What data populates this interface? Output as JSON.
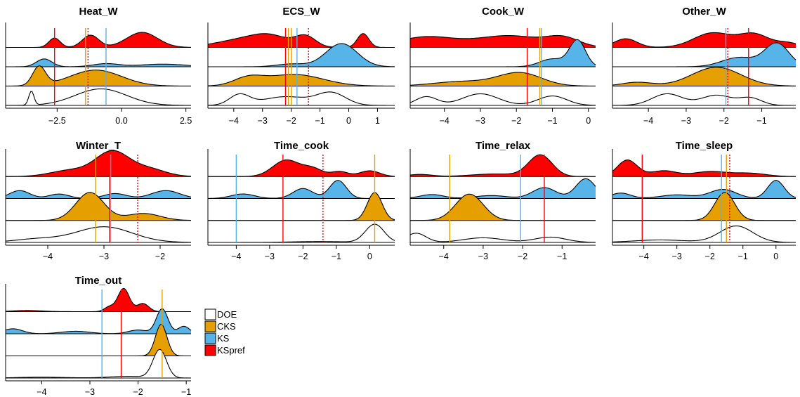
{
  "legend": {
    "items": [
      {
        "label": "DOE",
        "color": "#ffffff"
      },
      {
        "label": "CKS",
        "color": "#e69f00"
      },
      {
        "label": "KS",
        "color": "#56b4e9"
      },
      {
        "label": "KSpref",
        "color": "#ff0000"
      }
    ]
  },
  "chart_data": [
    {
      "type": "area",
      "title": "Heat_W",
      "xlim": [
        -4.5,
        2.7
      ],
      "xticks": [
        -2.5,
        0.0,
        2.5
      ],
      "xtick_labels": [
        "−2.5",
        "0.0",
        "2.5"
      ],
      "series": [
        {
          "name": "KSpref",
          "fill": "#ff0000",
          "peaks": [
            [
              -1.2,
              0.32,
              0.65
            ],
            [
              -2.6,
              0.22,
              0.5
            ],
            [
              0.8,
              0.6,
              0.8
            ]
          ],
          "amp": 1.3
        },
        {
          "name": "KS",
          "fill": "#56b4e9",
          "peaks": [
            [
              -0.6,
              0.5,
              0.35
            ],
            [
              1.6,
              0.9,
              0.3
            ],
            [
              -3.0,
              0.3,
              0.9
            ]
          ],
          "amp": 0.6
        },
        {
          "name": "CKS",
          "fill": "#e69f00",
          "peaks": [
            [
              -1.0,
              1.0,
              0.85
            ],
            [
              -3.2,
              0.25,
              1.0
            ]
          ],
          "amp": 1.3
        },
        {
          "name": "DOE",
          "fill": "none",
          "peaks": [
            [
              -0.8,
              1.0,
              0.95
            ],
            [
              -3.5,
              0.1,
              0.8
            ]
          ],
          "amp": 1.2
        }
      ],
      "vlines": [
        {
          "x": -2.6,
          "color": "#ff0000",
          "dash": false
        },
        {
          "x": -1.4,
          "color": "#e69f00",
          "dash": false
        },
        {
          "x": -1.3,
          "color": "#ff0000",
          "dash": true
        },
        {
          "x": -0.6,
          "color": "#56b4e9",
          "dash": false
        }
      ]
    },
    {
      "type": "area",
      "title": "ECS_W",
      "xlim": [
        -4.9,
        1.6
      ],
      "xticks": [
        -4,
        -3,
        -2,
        -1,
        0,
        1
      ],
      "xtick_labels": [
        "−4",
        "−3",
        "−2",
        "−1",
        "0",
        "1"
      ],
      "series": [
        {
          "name": "KSpref",
          "fill": "#ff0000",
          "peaks": [
            [
              -3.5,
              1.0,
              0.5
            ],
            [
              -2.7,
              0.6,
              0.4
            ],
            [
              -1.5,
              0.35,
              0.6
            ],
            [
              0.5,
              0.2,
              0.8
            ]
          ],
          "amp": 1.2
        },
        {
          "name": "KS",
          "fill": "#56b4e9",
          "peaks": [
            [
              -0.25,
              0.55,
              1.0
            ],
            [
              -2.0,
              0.5,
              0.12
            ]
          ],
          "amp": 1.6
        },
        {
          "name": "CKS",
          "fill": "#e69f00",
          "peaks": [
            [
              -1.9,
              1.0,
              0.8
            ],
            [
              -3.5,
              0.5,
              0.5
            ]
          ],
          "amp": 1.0
        },
        {
          "name": "DOE",
          "fill": "none",
          "peaks": [
            [
              -3.8,
              0.35,
              0.6
            ],
            [
              -2.2,
              0.8,
              0.5
            ],
            [
              -0.6,
              0.5,
              0.7
            ]
          ],
          "amp": 1.2
        }
      ],
      "vlines": [
        {
          "x": -2.2,
          "color": "#ff0000",
          "dash": false
        },
        {
          "x": -2.1,
          "color": "#e69f00",
          "dash": false
        },
        {
          "x": -2.0,
          "color": "#e69f00",
          "dash": false
        },
        {
          "x": -1.8,
          "color": "#56b4e9",
          "dash": false
        },
        {
          "x": -1.4,
          "color": "#ff0000",
          "dash": true
        }
      ]
    },
    {
      "type": "area",
      "title": "Cook_W",
      "xlim": [
        -4.95,
        0.2
      ],
      "xticks": [
        -4,
        -3,
        -2,
        -1,
        0
      ],
      "xtick_labels": [
        "−4",
        "−3",
        "−2",
        "−1",
        "0"
      ],
      "series": [
        {
          "name": "KSpref",
          "fill": "#ff0000",
          "peaks": [
            [
              -4.5,
              0.8,
              0.85
            ],
            [
              -2.2,
              0.9,
              0.95
            ],
            [
              -0.7,
              0.45,
              0.7
            ]
          ],
          "amp": 0.85
        },
        {
          "name": "KS",
          "fill": "#56b4e9",
          "peaks": [
            [
              -0.3,
              0.22,
              1.0
            ],
            [
              -1.0,
              0.35,
              0.3
            ]
          ],
          "amp": 1.8
        },
        {
          "name": "CKS",
          "fill": "#e69f00",
          "peaks": [
            [
              -1.9,
              0.6,
              1.0
            ],
            [
              -3.5,
              0.8,
              0.35
            ]
          ],
          "amp": 0.9
        },
        {
          "name": "DOE",
          "fill": "none",
          "peaks": [
            [
              -4.5,
              0.3,
              0.6
            ],
            [
              -3.0,
              0.5,
              0.8
            ],
            [
              -1.0,
              0.4,
              0.65
            ]
          ],
          "amp": 1.0
        }
      ],
      "vlines": [
        {
          "x": -1.7,
          "color": "#ff0000",
          "dash": false
        },
        {
          "x": -1.35,
          "color": "#e69f00",
          "dash": false
        },
        {
          "x": -1.3,
          "color": "#56b4e9",
          "dash": false
        }
      ]
    },
    {
      "type": "area",
      "title": "Other_W",
      "xlim": [
        -4.95,
        -0.1
      ],
      "xticks": [
        -4,
        -3,
        -2,
        -1
      ],
      "xtick_labels": [
        "−4",
        "−3",
        "−2",
        "−1"
      ],
      "series": [
        {
          "name": "KSpref",
          "fill": "#ff0000",
          "peaks": [
            [
              -4.6,
              0.3,
              0.6
            ],
            [
              -2.3,
              0.5,
              1.0
            ],
            [
              -1.2,
              0.4,
              0.9
            ],
            [
              -0.3,
              0.3,
              0.3
            ]
          ],
          "amp": 1.0
        },
        {
          "name": "KS",
          "fill": "#56b4e9",
          "peaks": [
            [
              -0.6,
              0.32,
              1.0
            ],
            [
              -1.6,
              0.45,
              0.4
            ]
          ],
          "amp": 1.6
        },
        {
          "name": "CKS",
          "fill": "#e69f00",
          "peaks": [
            [
              -2.2,
              0.65,
              1.0
            ],
            [
              -4.3,
              0.4,
              0.2
            ]
          ],
          "amp": 1.3
        },
        {
          "name": "DOE",
          "fill": "none",
          "peaks": [
            [
              -3.5,
              0.4,
              0.8
            ],
            [
              -2.2,
              0.4,
              0.7
            ],
            [
              -1.3,
              0.3,
              0.5
            ]
          ],
          "amp": 1.0
        }
      ],
      "vlines": [
        {
          "x": -1.95,
          "color": "#56b4e9",
          "dash": false
        },
        {
          "x": -1.9,
          "color": "#ff0000",
          "dash": true
        },
        {
          "x": -1.35,
          "color": "#ff0000",
          "dash": false
        }
      ]
    },
    {
      "type": "area",
      "title": "Winter_T",
      "xlim": [
        -4.75,
        -1.45
      ],
      "xticks": [
        -4,
        -3,
        -2
      ],
      "xtick_labels": [
        "−4",
        "−3",
        "−2"
      ],
      "series": [
        {
          "name": "KSpref",
          "fill": "#ff0000",
          "peaks": [
            [
              -2.85,
              0.3,
              1.0
            ],
            [
              -3.6,
              0.35,
              0.25
            ],
            [
              -2.2,
              0.3,
              0.3
            ]
          ],
          "amp": 1.5
        },
        {
          "name": "KS",
          "fill": "#56b4e9",
          "peaks": [
            [
              -4.5,
              0.18,
              0.8
            ],
            [
              -3.8,
              0.18,
              0.45
            ],
            [
              -2.8,
              0.2,
              0.5
            ],
            [
              -1.9,
              0.25,
              0.8
            ]
          ],
          "amp": 0.6
        },
        {
          "name": "CKS",
          "fill": "#e69f00",
          "peaks": [
            [
              -3.25,
              0.25,
              1.0
            ],
            [
              -2.3,
              0.3,
              0.25
            ]
          ],
          "amp": 1.7
        },
        {
          "name": "DOE",
          "fill": "none",
          "peaks": [
            [
              -3.0,
              0.5,
              0.95
            ],
            [
              -4.2,
              0.4,
              0.2
            ]
          ],
          "amp": 1.0
        }
      ],
      "vlines": [
        {
          "x": -3.15,
          "color": "#e69f00",
          "dash": false
        },
        {
          "x": -2.9,
          "color": "#ff0000",
          "dash": false
        },
        {
          "x": -2.88,
          "color": "#56b4e9",
          "dash": false
        },
        {
          "x": -2.4,
          "color": "#ff0000",
          "dash": true
        }
      ]
    },
    {
      "type": "area",
      "title": "Time_cook",
      "xlim": [
        -4.85,
        0.75
      ],
      "xticks": [
        -4,
        -3,
        -2,
        -1,
        0
      ],
      "xtick_labels": [
        "−4",
        "−3",
        "−2",
        "−1",
        "0"
      ],
      "series": [
        {
          "name": "KSpref",
          "fill": "#ff0000",
          "peaks": [
            [
              -2.5,
              0.4,
              1.0
            ],
            [
              -1.7,
              0.3,
              0.45
            ],
            [
              -0.9,
              0.25,
              0.3
            ],
            [
              0.0,
              0.3,
              0.35
            ]
          ],
          "amp": 1.0
        },
        {
          "name": "KS",
          "fill": "#56b4e9",
          "peaks": [
            [
              -0.95,
              0.25,
              1.0
            ],
            [
              -2.0,
              0.3,
              0.55
            ],
            [
              -3.8,
              0.35,
              0.25
            ]
          ],
          "amp": 1.1
        },
        {
          "name": "CKS",
          "fill": "#e69f00",
          "peaks": [
            [
              0.15,
              0.22,
              1.0
            ]
          ],
          "amp": 1.7
        },
        {
          "name": "DOE",
          "fill": "none",
          "peaks": [
            [
              0.15,
              0.28,
              1.0
            ],
            [
              -1.5,
              0.8,
              0.05
            ]
          ],
          "amp": 1.1
        }
      ],
      "vlines": [
        {
          "x": -4.0,
          "color": "#56b4e9",
          "dash": false
        },
        {
          "x": -2.6,
          "color": "#ff0000",
          "dash": false
        },
        {
          "x": -1.4,
          "color": "#ff0000",
          "dash": true
        },
        {
          "x": 0.15,
          "color": "#e69f00",
          "dash": false
        }
      ]
    },
    {
      "type": "area",
      "title": "Time_relax",
      "xlim": [
        -4.85,
        -0.15
      ],
      "xticks": [
        -4,
        -3,
        -2,
        -1
      ],
      "xtick_labels": [
        "−4",
        "−3",
        "−2",
        "−1"
      ],
      "series": [
        {
          "name": "KSpref",
          "fill": "#ff0000",
          "peaks": [
            [
              -1.55,
              0.3,
              1.0
            ],
            [
              -2.7,
              0.6,
              0.12
            ],
            [
              -4.6,
              0.3,
              0.1
            ]
          ],
          "amp": 1.3
        },
        {
          "name": "KS",
          "fill": "#56b4e9",
          "peaks": [
            [
              -0.4,
              0.25,
              1.0
            ],
            [
              -1.45,
              0.3,
              0.55
            ],
            [
              -4.3,
              0.3,
              0.2
            ],
            [
              -2.8,
              0.4,
              0.15
            ]
          ],
          "amp": 1.2
        },
        {
          "name": "CKS",
          "fill": "#e69f00",
          "peaks": [
            [
              -3.35,
              0.35,
              1.0
            ]
          ],
          "amp": 1.6
        },
        {
          "name": "DOE",
          "fill": "none",
          "peaks": [
            [
              -4.7,
              0.25,
              0.7
            ],
            [
              -3.0,
              0.5,
              0.35
            ],
            [
              -1.3,
              0.4,
              0.4
            ]
          ],
          "amp": 0.8
        }
      ],
      "vlines": [
        {
          "x": -3.85,
          "color": "#e69f00",
          "dash": false
        },
        {
          "x": -2.05,
          "color": "#56b4e9",
          "dash": false
        },
        {
          "x": -1.45,
          "color": "#ff0000",
          "dash": false
        }
      ]
    },
    {
      "type": "area",
      "title": "Time_sleep",
      "xlim": [
        -4.95,
        0.6
      ],
      "xticks": [
        -4,
        -3,
        -2,
        -1,
        0
      ],
      "xtick_labels": [
        "−4",
        "−3",
        "−2",
        "−1",
        "0"
      ],
      "series": [
        {
          "name": "KSpref",
          "fill": "#ff0000",
          "peaks": [
            [
              -4.5,
              0.3,
              1.0
            ],
            [
              -3.4,
              0.4,
              0.35
            ],
            [
              -2.0,
              0.5,
              0.3
            ],
            [
              -0.8,
              0.5,
              0.2
            ]
          ],
          "amp": 1.0
        },
        {
          "name": "KS",
          "fill": "#56b4e9",
          "peaks": [
            [
              0.0,
              0.25,
              1.0
            ],
            [
              -1.6,
              0.4,
              0.5
            ],
            [
              -4.7,
              0.3,
              0.3
            ],
            [
              -3.0,
              0.5,
              0.2
            ]
          ],
          "amp": 1.1
        },
        {
          "name": "CKS",
          "fill": "#e69f00",
          "peaks": [
            [
              -1.55,
              0.3,
              1.0
            ]
          ],
          "amp": 1.7
        },
        {
          "name": "DOE",
          "fill": "none",
          "peaks": [
            [
              -1.2,
              0.5,
              1.0
            ],
            [
              -3.5,
              0.8,
              0.15
            ]
          ],
          "amp": 1.0
        }
      ],
      "vlines": [
        {
          "x": -4.05,
          "color": "#ff0000",
          "dash": false
        },
        {
          "x": -1.65,
          "color": "#56b4e9",
          "dash": false
        },
        {
          "x": -1.5,
          "color": "#e69f00",
          "dash": false
        },
        {
          "x": -1.4,
          "color": "#ff0000",
          "dash": true
        }
      ]
    },
    {
      "type": "area",
      "title": "Time_out",
      "xlim": [
        -4.75,
        -0.9
      ],
      "xticks": [
        -4,
        -3,
        -2,
        -1
      ],
      "xtick_labels": [
        "−4",
        "−3",
        "−2",
        "−1"
      ],
      "series": [
        {
          "name": "KSpref",
          "fill": "#ff0000",
          "peaks": [
            [
              -2.3,
              0.12,
              1.0
            ],
            [
              -1.9,
              0.12,
              0.35
            ],
            [
              -2.6,
              0.1,
              0.2
            ],
            [
              -4.3,
              0.3,
              0.05
            ]
          ],
          "amp": 1.4
        },
        {
          "name": "KS",
          "fill": "#56b4e9",
          "peaks": [
            [
              -1.5,
              0.12,
              1.0
            ],
            [
              -4.6,
              0.2,
              0.2
            ],
            [
              -3.3,
              0.3,
              0.1
            ],
            [
              -2.0,
              0.2,
              0.15
            ],
            [
              -1.05,
              0.12,
              0.3
            ]
          ],
          "amp": 1.5
        },
        {
          "name": "CKS",
          "fill": "#e69f00",
          "peaks": [
            [
              -1.52,
              0.12,
              1.0
            ]
          ],
          "amp": 1.9
        },
        {
          "name": "DOE",
          "fill": "none",
          "peaks": [
            [
              -1.55,
              0.14,
              1.0
            ],
            [
              -2.2,
              0.4,
              0.06
            ],
            [
              -4.0,
              0.5,
              0.03
            ]
          ],
          "amp": 1.7
        }
      ],
      "vlines": [
        {
          "x": -2.75,
          "color": "#56b4e9",
          "dash": false
        },
        {
          "x": -2.35,
          "color": "#ff0000",
          "dash": false
        },
        {
          "x": -1.5,
          "color": "#e69f00",
          "dash": false
        }
      ]
    }
  ]
}
